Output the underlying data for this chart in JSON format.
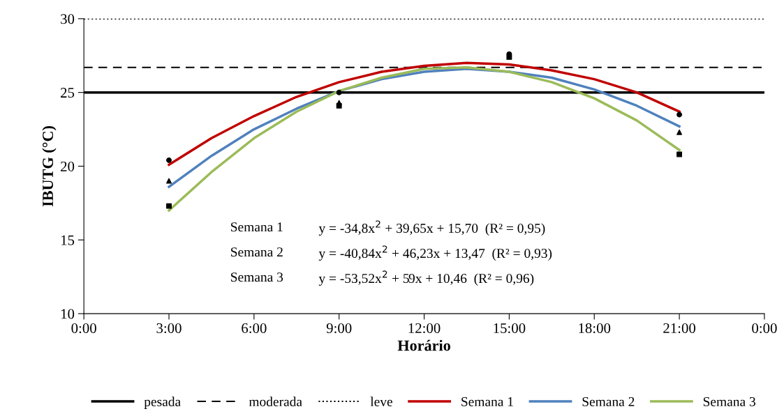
{
  "chart_data": {
    "type": "line",
    "xlabel": "Horário",
    "ylabel": "IBUTG (°C)",
    "xlim": [
      0,
      24
    ],
    "ylim": [
      10,
      30
    ],
    "xticks": [
      {
        "value": 0,
        "label": "0:00"
      },
      {
        "value": 3,
        "label": "3:00"
      },
      {
        "value": 6,
        "label": "6:00"
      },
      {
        "value": 9,
        "label": "9:00"
      },
      {
        "value": 12,
        "label": "12:00"
      },
      {
        "value": 15,
        "label": "15:00"
      },
      {
        "value": 18,
        "label": "18:00"
      },
      {
        "value": 21,
        "label": "21:00"
      },
      {
        "value": 24,
        "label": "0:00"
      }
    ],
    "yticks": [
      10,
      15,
      20,
      25,
      30
    ],
    "grid": false,
    "legend": "bottom",
    "series": [
      {
        "name": "pesada",
        "color": "#000000",
        "line_style": "solid",
        "x": [
          0,
          24
        ],
        "values": [
          25,
          25
        ]
      },
      {
        "name": "moderada",
        "color": "#000000",
        "line_style": "dashed",
        "x": [
          0,
          24
        ],
        "values": [
          26.7,
          26.7
        ]
      },
      {
        "name": "leve",
        "color": "#000000",
        "line_style": "dotted",
        "x": [
          0,
          24
        ],
        "values": [
          30,
          30
        ]
      },
      {
        "name": "Semana 1",
        "color": "#c00000",
        "line_style": "solid",
        "x": [
          3,
          4.5,
          6,
          7.5,
          9,
          10.5,
          12,
          13.5,
          15,
          16.5,
          18,
          19.5,
          21
        ],
        "values": [
          20.1,
          21.9,
          23.4,
          24.7,
          25.7,
          26.4,
          26.8,
          27.0,
          26.9,
          26.5,
          25.9,
          25.0,
          23.7
        ]
      },
      {
        "name": "Semana 2",
        "color": "#4f81bd",
        "line_style": "solid",
        "x": [
          3,
          4.5,
          6,
          7.5,
          9,
          10.5,
          12,
          13.5,
          15,
          16.5,
          18,
          19.5,
          21
        ],
        "values": [
          18.6,
          20.7,
          22.5,
          23.9,
          25.1,
          25.9,
          26.4,
          26.6,
          26.4,
          26.0,
          25.2,
          24.1,
          22.7
        ]
      },
      {
        "name": "Semana 3",
        "color": "#9bbb59",
        "line_style": "solid",
        "x": [
          3,
          4.5,
          6,
          7.5,
          9,
          10.5,
          12,
          13.5,
          15,
          16.5,
          18,
          19.5,
          21
        ],
        "values": [
          17.0,
          19.6,
          21.9,
          23.7,
          25.1,
          26.0,
          26.6,
          26.7,
          26.4,
          25.7,
          24.6,
          23.1,
          21.1
        ]
      },
      {
        "type": "scatter",
        "color": "#000000",
        "marker": "circle",
        "x": [
          3,
          9,
          15,
          21
        ],
        "values": [
          20.4,
          25.0,
          27.6,
          23.5
        ]
      },
      {
        "type": "scatter",
        "color": "#000000",
        "marker": "triangle",
        "x": [
          3,
          9,
          15,
          21
        ],
        "values": [
          19.0,
          24.3,
          null,
          22.3
        ]
      },
      {
        "type": "scatter",
        "color": "#000000",
        "marker": "square",
        "x": [
          3,
          9,
          15,
          21
        ],
        "values": [
          17.3,
          24.1,
          27.4,
          20.8
        ]
      }
    ],
    "annotations": [
      "Semana 1",
      "y = -34,8x$^{2}$ + 39,65x + 15,70  (R² = 0,95)",
      "Semana 2",
      "y = -40,84x$^{2}$ + 46,23x + 13,47  (R² = 0,93)",
      "Semana 3",
      "y = -53,52x$^{2}$ + 59x + 10,46  (R² = 0,96)"
    ]
  }
}
